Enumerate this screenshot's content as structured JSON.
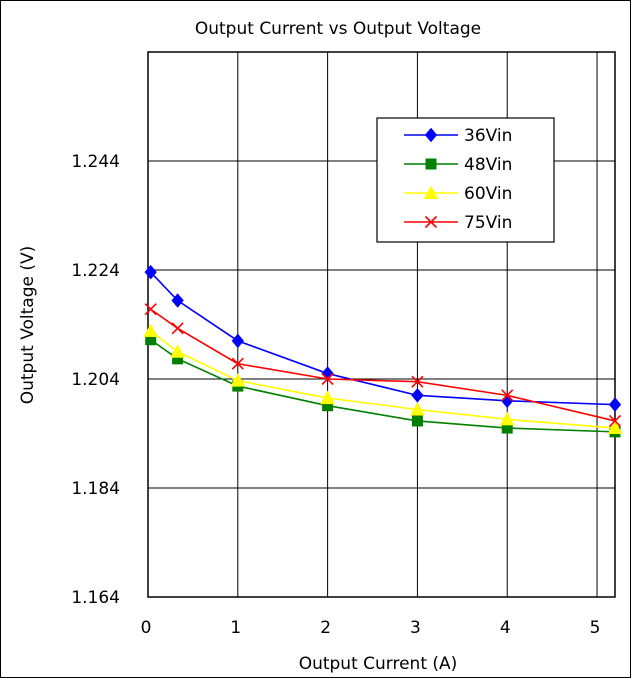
{
  "chart_data": {
    "type": "line",
    "title": "Output Current vs Output Voltage",
    "xlabel": "Output Current (A)",
    "ylabel": "Output Voltage (V)",
    "xlim": [
      0,
      5.2
    ],
    "ylim": [
      1.164,
      1.264
    ],
    "xticks": [
      0,
      1,
      2,
      3,
      4,
      5
    ],
    "yticks": [
      1.164,
      1.184,
      1.204,
      1.224,
      1.244
    ],
    "ytick_labels": [
      "1.164",
      "1.184",
      "1.204",
      "1.224",
      "1.244"
    ],
    "grid": true,
    "legend_position": "top-right",
    "series": [
      {
        "name": "36Vin",
        "color": "#0000ff",
        "marker": "diamond",
        "x": [
          0.03,
          0.33,
          1.0,
          2.0,
          3.0,
          4.0,
          5.2
        ],
        "y": [
          1.2236,
          1.2184,
          1.211,
          1.205,
          1.201,
          1.2,
          1.1993
        ]
      },
      {
        "name": "48Vin",
        "color": "#008000",
        "marker": "square",
        "x": [
          0.03,
          0.33,
          1.0,
          2.0,
          3.0,
          4.0,
          5.2
        ],
        "y": [
          1.2112,
          1.2077,
          1.2027,
          1.1991,
          1.1963,
          1.195,
          1.1943
        ]
      },
      {
        "name": "60Vin",
        "color": "#ffff00",
        "marker": "triangle",
        "x": [
          0.03,
          0.33,
          1.0,
          2.0,
          3.0,
          4.0,
          5.2
        ],
        "y": [
          1.2128,
          1.209,
          1.2037,
          1.2005,
          1.1984,
          1.1966,
          1.195
        ]
      },
      {
        "name": "75Vin",
        "color": "#ff0000",
        "marker": "x",
        "x": [
          0.03,
          0.33,
          1.0,
          2.0,
          3.0,
          4.0,
          5.2
        ],
        "y": [
          1.2168,
          1.2133,
          1.2068,
          1.204,
          1.2035,
          1.201,
          1.1963
        ]
      }
    ]
  }
}
